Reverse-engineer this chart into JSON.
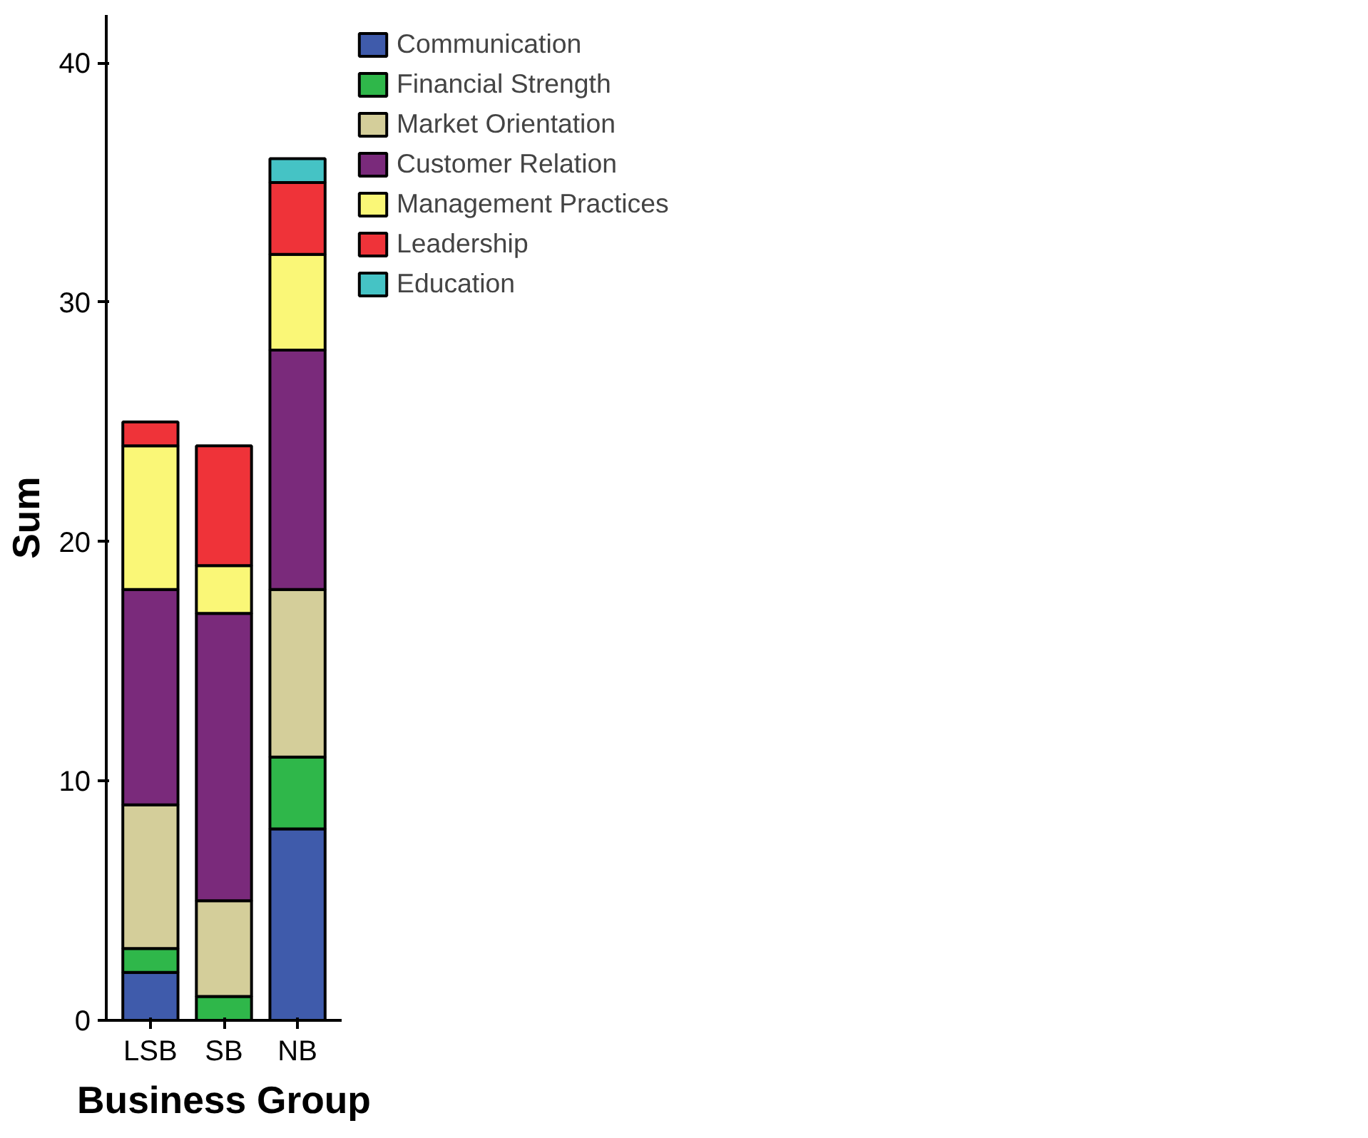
{
  "chart_data": {
    "type": "bar",
    "stacked": true,
    "xlabel": "Business Group",
    "ylabel": "Sum",
    "categories": [
      "LSB",
      "SB",
      "NB"
    ],
    "series": [
      {
        "name": "Communication",
        "color": "#3f5bab",
        "values": [
          2,
          null,
          8
        ]
      },
      {
        "name": "Financial Strength",
        "color": "#2fb74a",
        "values": [
          1,
          1,
          3
        ]
      },
      {
        "name": "Market Orientation",
        "color": "#d4ce9a",
        "values": [
          6,
          4,
          7
        ]
      },
      {
        "name": "Customer Relation",
        "color": "#7a2a7b",
        "values": [
          9,
          12,
          10
        ]
      },
      {
        "name": "Management Practices",
        "color": "#faf777",
        "values": [
          6,
          2,
          4
        ]
      },
      {
        "name": "Leadership",
        "color": "#ef3339",
        "values": [
          1,
          5,
          3
        ]
      },
      {
        "name": "Education",
        "color": "#45c3c5",
        "values": [
          null,
          null,
          1
        ]
      }
    ],
    "ylim": [
      0,
      42
    ],
    "yticks": [
      0,
      10,
      20,
      30,
      40
    ],
    "grid": false,
    "legend": "top right"
  }
}
